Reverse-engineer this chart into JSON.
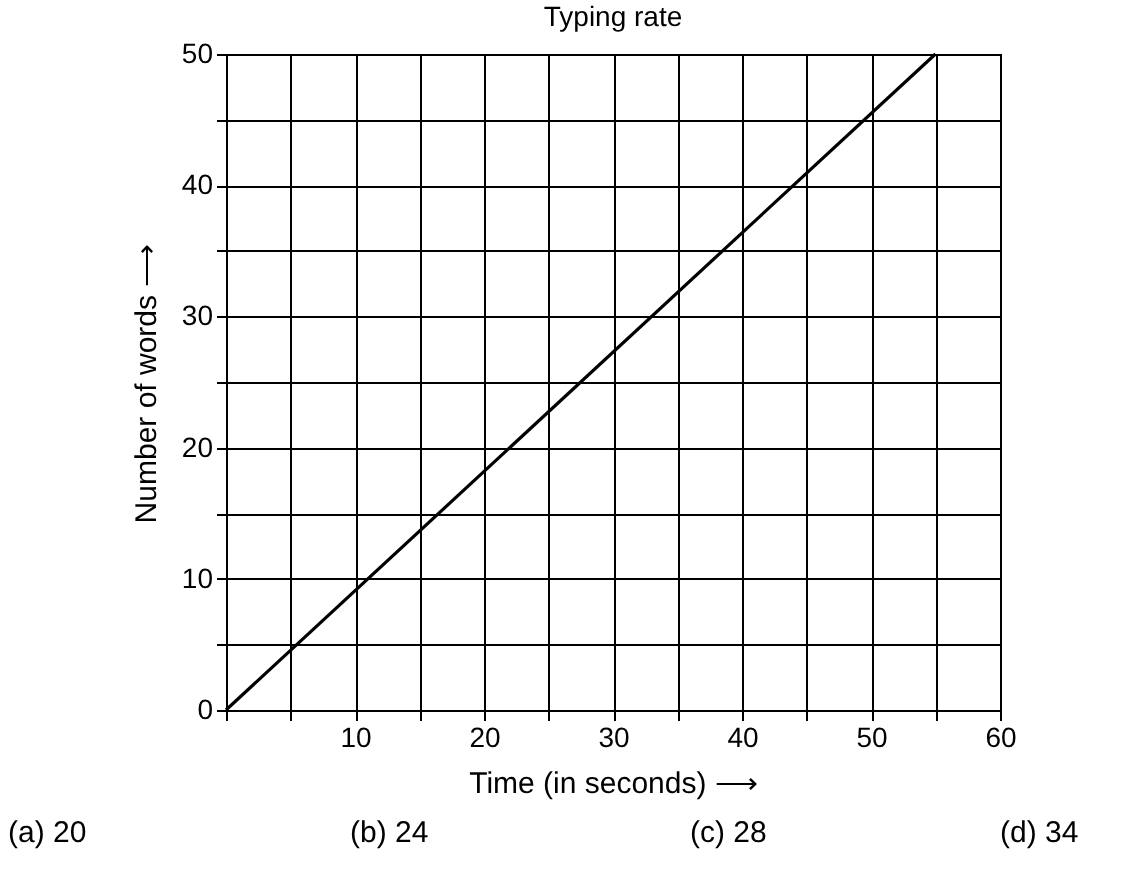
{
  "chart_data": {
    "type": "line",
    "title": "Typing rate",
    "xlabel": "Time (in seconds) ⟶",
    "ylabel": "Number of words ⟶",
    "x": [
      0,
      55
    ],
    "series": [
      {
        "color": "#000000",
        "values": [
          0,
          50
        ]
      }
    ],
    "xlim": [
      0,
      60
    ],
    "ylim": [
      0,
      50
    ],
    "xticks": [
      {
        "value": 0,
        "label": null
      },
      {
        "value": 5,
        "label": null
      },
      10,
      {
        "value": 15,
        "label": null
      },
      20,
      {
        "value": 25,
        "label": null
      },
      30,
      {
        "value": 35,
        "label": null
      },
      40,
      {
        "value": 45,
        "label": null
      },
      50,
      {
        "value": 55,
        "label": null
      },
      60
    ],
    "yticks": [
      0,
      {
        "value": 5,
        "label": null
      },
      10,
      {
        "value": 15,
        "label": null
      },
      20,
      {
        "value": 25,
        "label": null
      },
      30,
      {
        "value": 35,
        "label": null
      },
      40,
      {
        "value": 45,
        "label": null
      },
      50
    ],
    "grid": true,
    "marker": "none",
    "line_style": "solid",
    "annotations": [
      "(a) 20",
      "(b) 24",
      "(c) 28",
      "(d) 34"
    ]
  }
}
